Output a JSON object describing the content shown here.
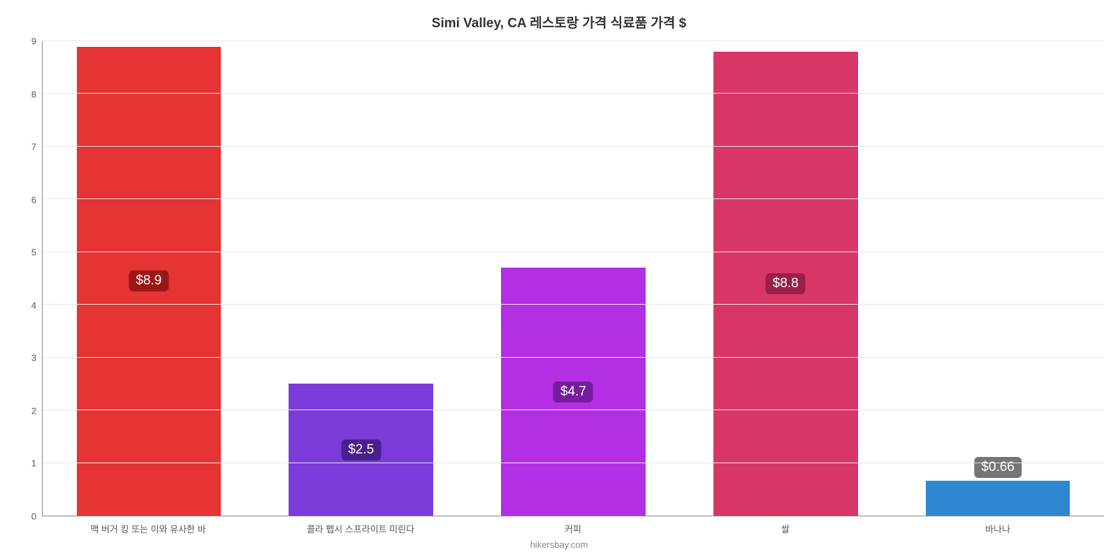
{
  "chart": {
    "type": "bar",
    "title": "Simi Valley, CA 레스토랑 가격 식료품 가격 $",
    "title_fontsize": 19,
    "title_color": "#333333",
    "source": "hikersbay.com",
    "source_color": "#888888",
    "background_color": "#ffffff",
    "grid_color": "#e6e6e6",
    "axis_color": "#888888",
    "label_color": "#555555",
    "label_fontsize": 13,
    "ylim": [
      0,
      9
    ],
    "ytick_step": 1,
    "bar_width_pct": 68,
    "badge_text_color": "#ffffff",
    "badge_fontsize": 19,
    "y_ticks": [
      "0",
      "1",
      "2",
      "3",
      "4",
      "5",
      "6",
      "7",
      "8",
      "9"
    ],
    "categories": [
      "맥 버거 킹 또는 이와 유사한 바",
      "콜라 펩시 스프라이트 미린다",
      "커피",
      "쌀",
      "바나나"
    ],
    "values": [
      8.9,
      2.5,
      4.7,
      8.8,
      0.66
    ],
    "value_labels": [
      "$8.9",
      "$2.5",
      "$4.7",
      "$8.8",
      "$0.66"
    ],
    "bar_colors": [
      "#e63333",
      "#7a3bd9",
      "#b32fe3",
      "#d93668",
      "#2f86d1"
    ],
    "badge_colors": [
      "#9c1616",
      "#4a1e8e",
      "#741ca0",
      "#97204a",
      "#757575"
    ],
    "badge_outside": [
      false,
      false,
      false,
      false,
      true
    ]
  }
}
